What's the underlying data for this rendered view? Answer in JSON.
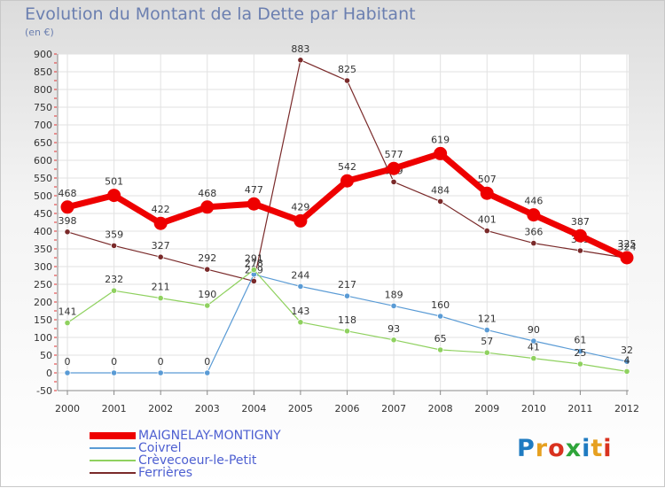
{
  "chart_data": {
    "type": "line",
    "title": "Evolution du Montant de la Dette par Habitant",
    "subtitle": "(en €)",
    "xlabel": "",
    "ylabel": "",
    "ylim": [
      -50,
      900
    ],
    "yticks": [
      -50,
      0,
      50,
      100,
      150,
      200,
      250,
      300,
      350,
      400,
      450,
      500,
      550,
      600,
      650,
      700,
      750,
      800,
      850,
      900
    ],
    "x": [
      "2000",
      "2001",
      "2002",
      "2003",
      "2004",
      "2005",
      "2006",
      "2007",
      "2008",
      "2009",
      "2010",
      "2011",
      "2012"
    ],
    "grid": true,
    "legend_position": "bottom-left",
    "series": [
      {
        "name": "MAIGNELAY-MONTIGNY",
        "color": "#ee0000",
        "values": [
          468,
          501,
          422,
          468,
          477,
          429,
          542,
          577,
          619,
          507,
          446,
          387,
          325
        ]
      },
      {
        "name": "Coivrel",
        "color": "#5a9bd5",
        "values": [
          0,
          0,
          0,
          0,
          278,
          244,
          217,
          189,
          160,
          121,
          90,
          61,
          32
        ]
      },
      {
        "name": "Crèvecoeur-le-Petit",
        "color": "#8fd15f",
        "values": [
          141,
          232,
          211,
          190,
          291,
          143,
          118,
          93,
          65,
          57,
          41,
          25,
          4
        ]
      },
      {
        "name": "Ferrières",
        "color": "#7a2a2a",
        "values": [
          398,
          359,
          327,
          292,
          259,
          883,
          825,
          539,
          484,
          401,
          366,
          345,
          324
        ]
      }
    ]
  },
  "logo": {
    "text": "Proxiti",
    "letters": [
      {
        "ch": "P",
        "color": "#1f7bc1"
      },
      {
        "ch": "r",
        "color": "#e6a020"
      },
      {
        "ch": "o",
        "color": "#d9321f"
      },
      {
        "ch": "x",
        "color": "#2fa53a"
      },
      {
        "ch": "i",
        "color": "#1f7bc1"
      },
      {
        "ch": "t",
        "color": "#e6a020"
      },
      {
        "ch": "i",
        "color": "#d9321f"
      }
    ]
  }
}
